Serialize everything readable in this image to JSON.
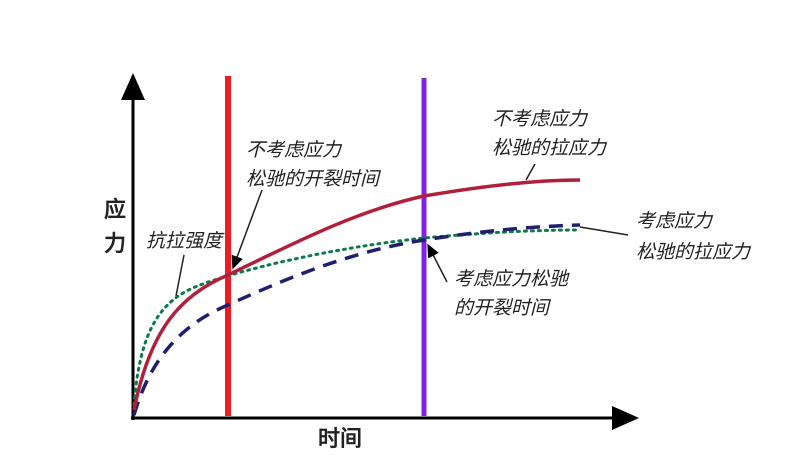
{
  "axes": {
    "y_label_line1": "应",
    "y_label_line2": "力",
    "x_label": "时间"
  },
  "annotations": {
    "tensile_strength": "抗拉强度",
    "crack_time_no_relax_line1": "不考虑应力",
    "crack_time_no_relax_line2": "松驰的开裂时间",
    "stress_no_relax_line1": "不考虑应力",
    "stress_no_relax_line2": "松驰的拉应力",
    "stress_relax_line1": "考虑应力",
    "stress_relax_line2": "松驰的拉应力",
    "crack_time_relax_line1": "考虑应力松驰",
    "crack_time_relax_line2": "的开裂时间"
  },
  "colors": {
    "stress_no_relax": "#b0203a",
    "stress_relax": "#1f1f6e",
    "tensile_strength": "#0e7a4a",
    "crack_no_relax_line": "#ee1c25",
    "crack_relax_line": "#7f22e8",
    "axis": "#000000"
  },
  "line_styles": {
    "stress_no_relax": "solid",
    "stress_relax": "dashed",
    "tensile_strength": "dotted"
  }
}
